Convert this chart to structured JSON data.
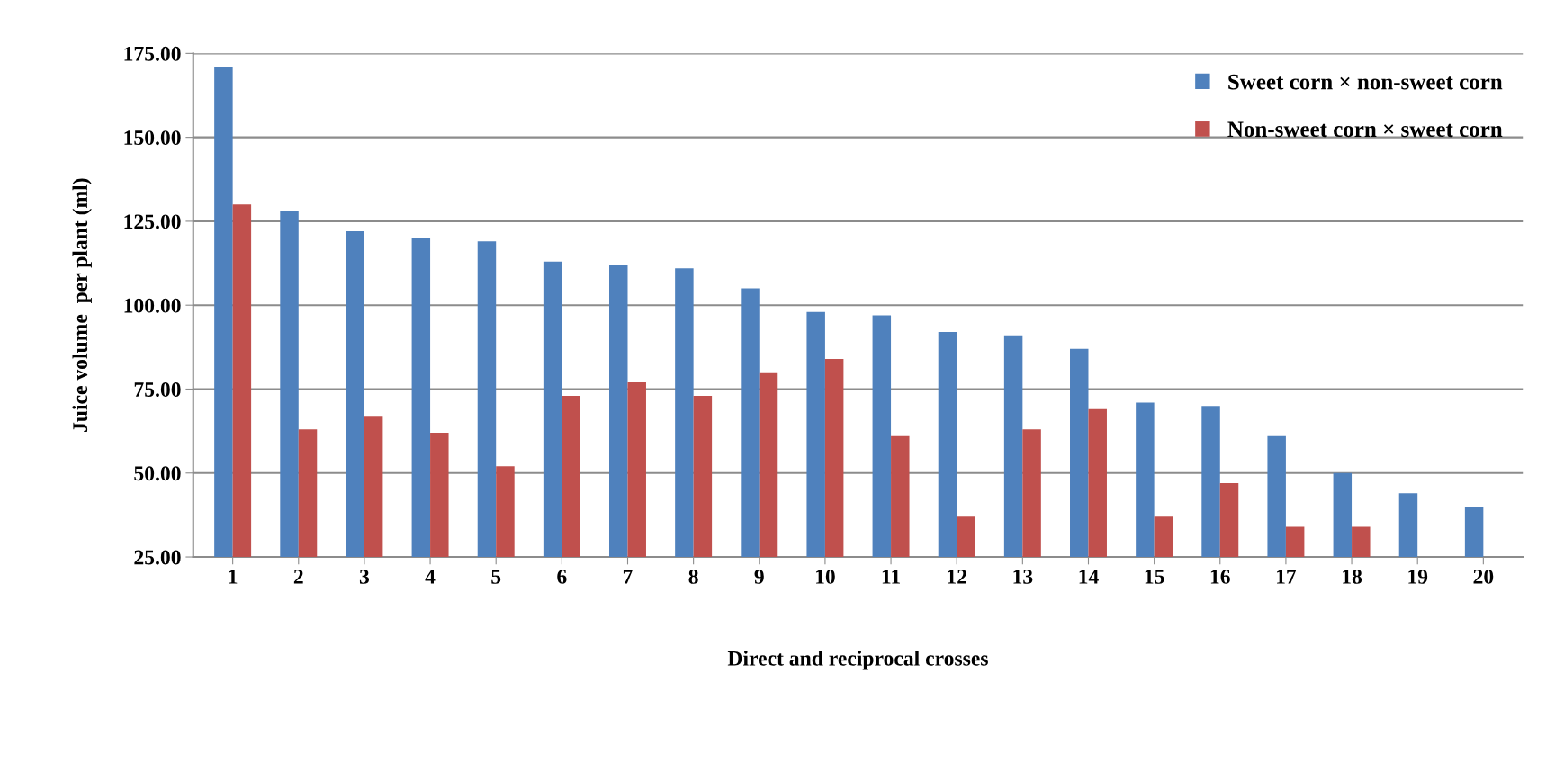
{
  "chart_data": {
    "type": "bar",
    "xlabel": "Direct and reciprocal crosses",
    "ylabel": "Juice volume  per plant (ml)",
    "categories": [
      "1",
      "2",
      "3",
      "4",
      "5",
      "6",
      "7",
      "8",
      "9",
      "10",
      "11",
      "12",
      "13",
      "14",
      "15",
      "16",
      "17",
      "18",
      "19",
      "20"
    ],
    "series": [
      {
        "name": "Sweet corn × non-sweet corn",
        "color": "#4f81bd",
        "values": [
          171,
          128,
          122,
          120,
          119,
          113,
          112,
          111,
          105,
          98,
          97,
          92,
          91,
          87,
          71,
          70,
          61,
          50,
          44,
          40
        ]
      },
      {
        "name": "Non-sweet corn × sweet corn",
        "color": "#c0504d",
        "values": [
          130,
          63,
          67,
          62,
          52,
          73,
          77,
          73,
          80,
          84,
          61,
          37,
          63,
          69,
          37,
          47,
          34,
          34,
          25,
          25
        ]
      }
    ],
    "ylim": [
      25,
      175
    ],
    "yticks": [
      {
        "value": 25,
        "label": "25.00"
      },
      {
        "value": 50,
        "label": "50.00"
      },
      {
        "value": 75,
        "label": "75.00"
      },
      {
        "value": 100,
        "label": "100.00"
      },
      {
        "value": 125,
        "label": "125.00"
      },
      {
        "value": 150,
        "label": "150.00"
      },
      {
        "value": 175,
        "label": "175.00"
      }
    ],
    "grid": "y",
    "legend": "top right"
  }
}
